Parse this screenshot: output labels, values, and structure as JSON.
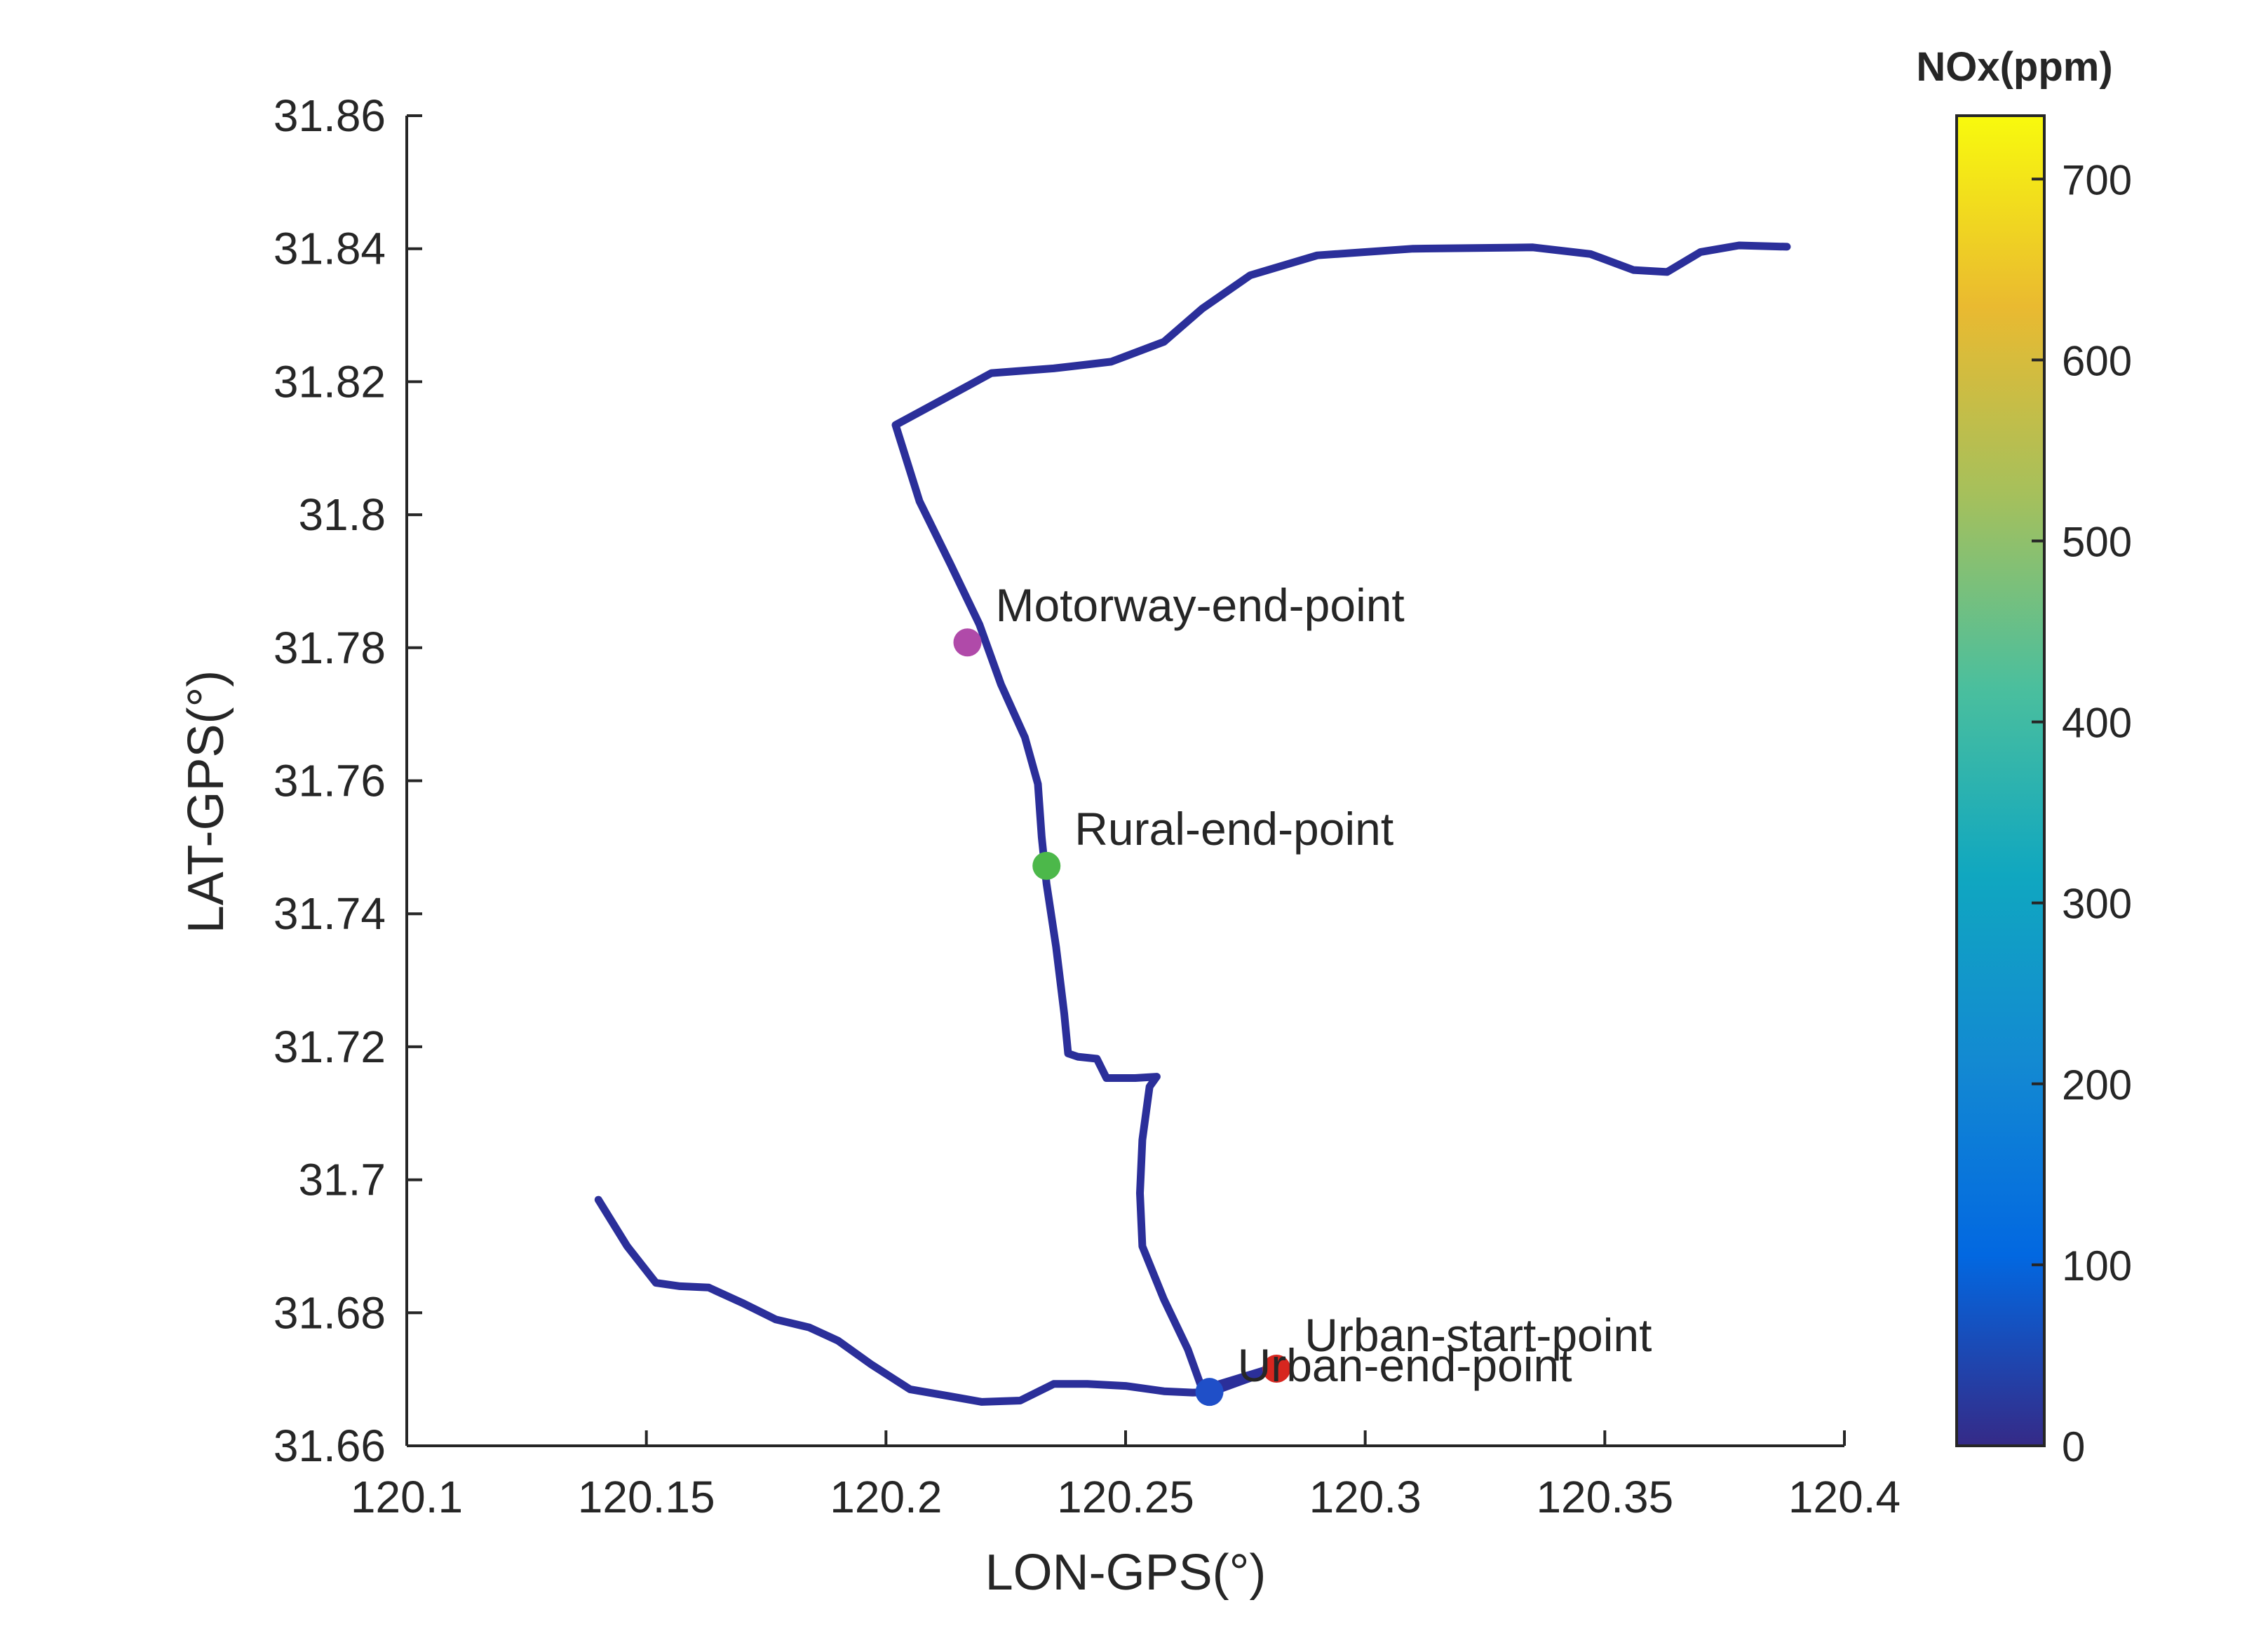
{
  "chart_data": {
    "type": "line",
    "xlabel": "LON-GPS(°)",
    "ylabel": "LAT-GPS(°)",
    "xlim": [
      120.1,
      120.4
    ],
    "ylim": [
      31.66,
      31.86
    ],
    "x_ticks": [
      120.1,
      120.15,
      120.2,
      120.25,
      120.3,
      120.35,
      120.4
    ],
    "x_tick_labels": [
      "120.1",
      "120.15",
      "120.2",
      "120.25",
      "120.3",
      "120.35",
      "120.4"
    ],
    "y_ticks": [
      31.66,
      31.68,
      31.7,
      31.72,
      31.74,
      31.76,
      31.78,
      31.8,
      31.82,
      31.84,
      31.86
    ],
    "y_tick_labels": [
      "31.66",
      "31.68",
      "31.7",
      "31.72",
      "31.74",
      "31.76",
      "31.78",
      "31.8",
      "31.82",
      "31.84",
      "31.86"
    ],
    "grid": false,
    "route": {
      "color": "#2b2f9a",
      "points": [
        [
          120.14,
          31.697
        ],
        [
          120.146,
          31.69
        ],
        [
          120.152,
          31.6845
        ],
        [
          120.157,
          31.684
        ],
        [
          120.163,
          31.6838
        ],
        [
          120.17,
          31.6815
        ],
        [
          120.177,
          31.679
        ],
        [
          120.184,
          31.6778
        ],
        [
          120.19,
          31.6758
        ],
        [
          120.197,
          31.6722
        ],
        [
          120.205,
          31.6685
        ],
        [
          120.213,
          31.6675
        ],
        [
          120.22,
          31.6666
        ],
        [
          120.228,
          31.6668
        ],
        [
          120.235,
          31.6693
        ],
        [
          120.242,
          31.6693
        ],
        [
          120.25,
          31.669
        ],
        [
          120.258,
          31.6682
        ],
        [
          120.264,
          31.668
        ],
        [
          120.268,
          31.6681
        ],
        [
          120.276,
          31.6702
        ],
        [
          120.281,
          31.6718
        ],
        [
          120.266,
          31.6685
        ],
        [
          120.263,
          31.6745
        ],
        [
          120.258,
          31.682
        ],
        [
          120.2535,
          31.69
        ],
        [
          120.253,
          31.698
        ],
        [
          120.2535,
          31.706
        ],
        [
          120.255,
          31.714
        ],
        [
          120.2565,
          31.7155
        ],
        [
          120.252,
          31.7153
        ],
        [
          120.246,
          31.7153
        ],
        [
          120.244,
          31.7182
        ],
        [
          120.24,
          31.7185
        ],
        [
          120.238,
          31.719
        ],
        [
          120.2372,
          31.725
        ],
        [
          120.2355,
          31.735
        ],
        [
          120.2335,
          31.7445
        ],
        [
          120.2325,
          31.7515
        ],
        [
          120.2317,
          31.7595
        ],
        [
          120.229,
          31.7665
        ],
        [
          120.224,
          31.7745
        ],
        [
          120.2195,
          31.7835
        ],
        [
          120.2135,
          31.7925
        ],
        [
          120.207,
          31.802
        ],
        [
          120.202,
          31.8135
        ],
        [
          120.211,
          31.817
        ],
        [
          120.222,
          31.8213
        ],
        [
          120.235,
          31.822
        ],
        [
          120.247,
          31.823
        ],
        [
          120.258,
          31.826
        ],
        [
          120.266,
          31.831
        ],
        [
          120.276,
          31.836
        ],
        [
          120.29,
          31.839
        ],
        [
          120.31,
          31.84
        ],
        [
          120.335,
          31.8402
        ],
        [
          120.347,
          31.8392
        ],
        [
          120.356,
          31.8368
        ],
        [
          120.363,
          31.8365
        ],
        [
          120.37,
          31.8395
        ],
        [
          120.378,
          31.8405
        ],
        [
          120.388,
          31.8403
        ]
      ]
    },
    "markers": [
      {
        "name": "Motorway-end-point",
        "label": "Motorway-end-point",
        "x": 120.217,
        "y": 31.7808,
        "color": "#b04aa9"
      },
      {
        "name": "Rural-end-point",
        "label": "Rural-end-point",
        "x": 120.2335,
        "y": 31.7472,
        "color": "#4cb84a"
      },
      {
        "name": "Urban-start-point",
        "label": "Urban-start-point",
        "x": 120.2815,
        "y": 31.6716,
        "color": "#d7261f"
      },
      {
        "name": "Urban-end-point",
        "label": "Urban-end-point",
        "x": 120.2675,
        "y": 31.6681,
        "color": "#1f4fc8"
      }
    ],
    "colorbar": {
      "title": "NOx(ppm)",
      "min": 0,
      "max": 735,
      "ticks": [
        0,
        100,
        200,
        300,
        400,
        500,
        600,
        700
      ],
      "tick_labels": [
        "0",
        "100",
        "200",
        "300",
        "400",
        "500",
        "600",
        "700"
      ],
      "colormap": "parula",
      "colors": [
        "#352a87",
        "#0268e1",
        "#1389d2",
        "#10a7c0",
        "#4bbf9d",
        "#a5c05c",
        "#eaba30",
        "#f8fa0d"
      ]
    }
  }
}
